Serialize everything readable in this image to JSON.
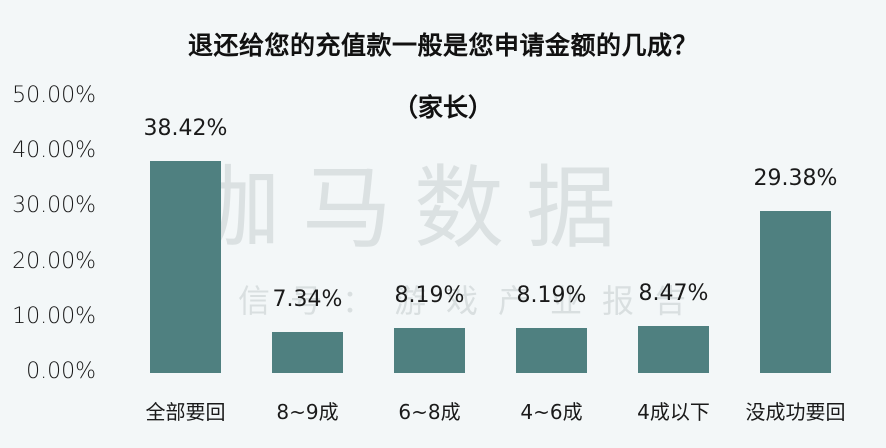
{
  "title": "退还给您的充值款一般是您申请金额的几成？",
  "subtitle": "（家长）",
  "watermark": {
    "main": "伽马数据",
    "sub": "微信号：游戏产业报告"
  },
  "colors": {
    "bar": "#4f8080",
    "background": "#f3f7f8",
    "watermark": "#c9d0d1"
  },
  "y_ticks": [
    "50.00%",
    "40.00%",
    "30.00%",
    "20.00%",
    "10.00%",
    "0.00%"
  ],
  "bars": [
    {
      "category": "全部要回",
      "value": 38.42,
      "label": "38.42%"
    },
    {
      "category": "8~9成",
      "value": 7.34,
      "label": "7.34%"
    },
    {
      "category": "6~8成",
      "value": 8.19,
      "label": "8.19%"
    },
    {
      "category": "4~6成",
      "value": 8.19,
      "label": "8.19%"
    },
    {
      "category": "4成以下",
      "value": 8.47,
      "label": "8.47%"
    },
    {
      "category": "没成功要回",
      "value": 29.38,
      "label": "29.38%"
    }
  ],
  "chart_data": {
    "type": "bar",
    "title": "退还给您的充值款一般是您申请金额的几成？",
    "subtitle": "（家长）",
    "categories": [
      "全部要回",
      "8~9成",
      "6~8成",
      "4~6成",
      "4成以下",
      "没成功要回"
    ],
    "values": [
      38.42,
      7.34,
      8.19,
      8.19,
      8.47,
      29.38
    ],
    "data_labels": [
      "38.42%",
      "7.34%",
      "8.19%",
      "8.19%",
      "8.47%",
      "29.38%"
    ],
    "xlabel": "",
    "ylabel": "",
    "ylim": [
      0,
      50
    ],
    "y_tick_labels": [
      "0.00%",
      "10.00%",
      "20.00%",
      "30.00%",
      "40.00%",
      "50.00%"
    ],
    "grid": false,
    "legend": "none",
    "unit": "%"
  }
}
